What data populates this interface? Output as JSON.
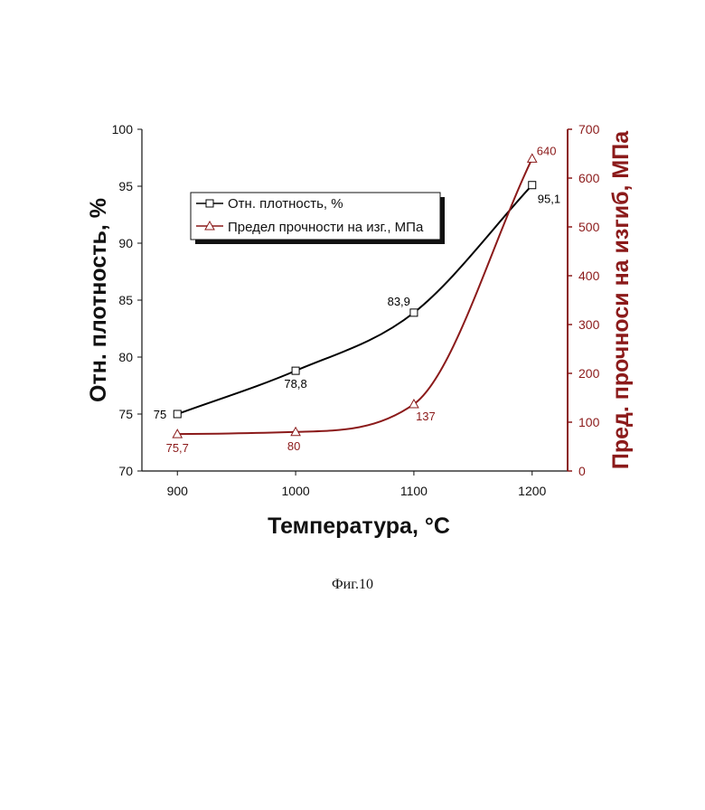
{
  "figure_caption": "Фиг.10",
  "chart_data": {
    "type": "line",
    "x": [
      900,
      1000,
      1100,
      1200
    ],
    "xlabel": "Температура, °С",
    "xlim": [
      870,
      1230
    ],
    "x_ticks": [
      "900",
      "1000",
      "1100",
      "1200"
    ],
    "ylabel_left": "Отн. плотность, %",
    "ylim_left": [
      70,
      100
    ],
    "y_ticks_left": [
      "70",
      "75",
      "80",
      "85",
      "90",
      "95",
      "100"
    ],
    "ylabel_right": "Пред. прочноси на изгиб, МПа",
    "ylim_right": [
      0,
      700
    ],
    "y_ticks_right": [
      "0",
      "100",
      "200",
      "300",
      "400",
      "500",
      "600",
      "700"
    ],
    "grid": false,
    "legend_position": "top-left",
    "series": [
      {
        "name": "Отн. плотность, %",
        "axis": "left",
        "marker": "square",
        "color": "#000000",
        "values": [
          75,
          78.8,
          83.9,
          95.1
        ],
        "labels": [
          "75",
          "78,8",
          "83,9",
          "95,1"
        ]
      },
      {
        "name": "Предел прочности на изг., МПа",
        "axis": "right",
        "marker": "triangle",
        "color": "#8b1a1a",
        "values": [
          75.7,
          80,
          137,
          640
        ],
        "labels": [
          "75,7",
          "80",
          "137",
          "640"
        ]
      }
    ]
  }
}
